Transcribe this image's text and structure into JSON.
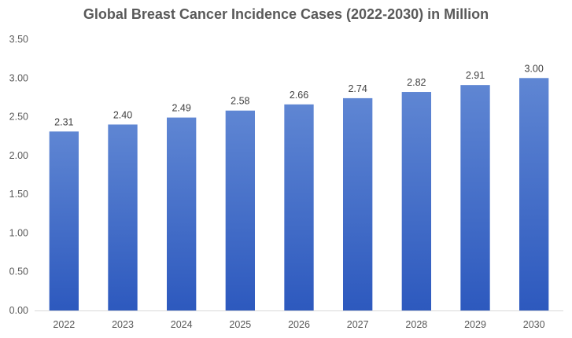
{
  "chart_data": {
    "type": "bar",
    "title": "Global Breast Cancer Incidence Cases (2022-2030) in Million",
    "categories": [
      "2022",
      "2023",
      "2024",
      "2025",
      "2026",
      "2027",
      "2028",
      "2029",
      "2030"
    ],
    "values": [
      2.31,
      2.4,
      2.49,
      2.58,
      2.66,
      2.74,
      2.82,
      2.91,
      3.0
    ],
    "data_labels": [
      "2.31",
      "2.40",
      "2.49",
      "2.58",
      "2.66",
      "2.74",
      "2.82",
      "2.91",
      "3.00"
    ],
    "ylim": [
      0,
      3.5
    ],
    "yticks": [
      "0.00",
      "0.50",
      "1.00",
      "1.50",
      "2.00",
      "2.50",
      "3.00",
      "3.50"
    ],
    "grid": false,
    "legend": "none",
    "colors": {
      "bar_top": "#5f86d3",
      "bar_bottom": "#2d59be",
      "axis": "#d9d9d9"
    }
  }
}
